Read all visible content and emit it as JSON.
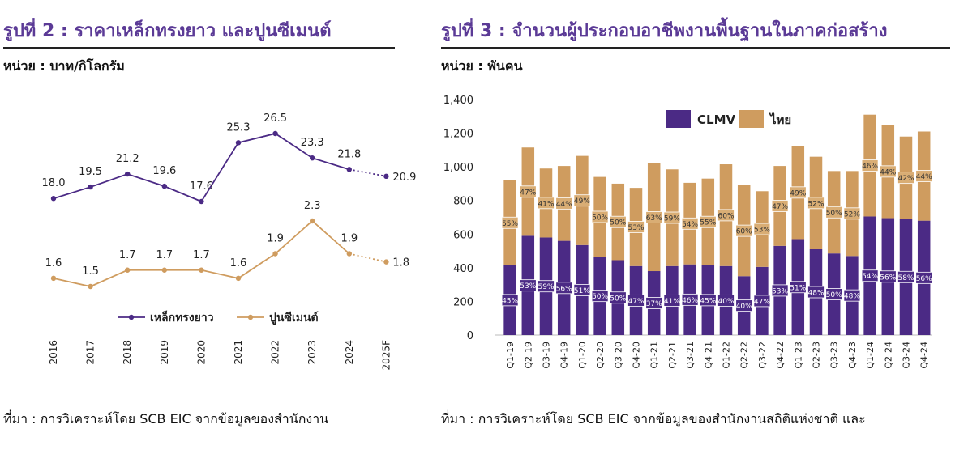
{
  "left": {
    "title": "รูปที่ 2 : ราคาเหล็กทรงยาว และปูนซีเมนต์",
    "unit": "หน่วย : บาท/กิโลกรัม",
    "source": "ที่มา : การวิเคราะห์โดย SCB EIC จากข้อมูลของสำนักงาน"
  },
  "right": {
    "title": "รูปที่ 3 : จำนวนผู้ประกอบอาชีพงานพื้นฐานในภาคก่อสร้าง",
    "unit": "หน่วย : พันคน",
    "source": "ที่มา : การวิเคราะห์โดย SCB EIC จากข้อมูลของสำนักงานสถิติแห่งชาติ และ"
  },
  "colors": {
    "title": "#5b3a96",
    "purple": "#4b2a85",
    "tan": "#cf9c5f",
    "tan_label": "#d9ad74"
  },
  "chart_data": [
    {
      "type": "line",
      "title": "",
      "xlabel": "",
      "ylabel": "",
      "categories": [
        "2016",
        "2017",
        "2018",
        "2019",
        "2020",
        "2021",
        "2022",
        "2023",
        "2024",
        "2025F"
      ],
      "value_labels": [
        [
          "18.0",
          "19.5",
          "21.2",
          "19.6",
          "17.6",
          "25.3",
          "26.5",
          "23.3",
          "21.8",
          "20.9"
        ],
        [
          "1.6",
          "1.5",
          "1.7",
          "1.7",
          "1.7",
          "1.6",
          "1.9",
          "2.3",
          "1.9",
          "1.8"
        ]
      ],
      "series": [
        {
          "name": "เหล็กทรงยาว",
          "color": "#4b2a85",
          "values": [
            18.0,
            19.5,
            21.2,
            19.6,
            17.6,
            25.3,
            26.5,
            23.3,
            21.8,
            20.9
          ],
          "forecast_from_index": 8
        },
        {
          "name": "ปูนซีเมนต์",
          "color": "#cf9c5f",
          "values": [
            1.6,
            1.5,
            1.7,
            1.7,
            1.7,
            1.6,
            1.9,
            2.3,
            1.9,
            1.8
          ],
          "forecast_from_index": 8
        }
      ],
      "legend": "bottom",
      "grid": false
    },
    {
      "type": "bar",
      "stacked": true,
      "title": "",
      "xlabel": "",
      "ylabel": "",
      "categories": [
        "Q1-19",
        "Q2-19",
        "Q3-19",
        "Q4-19",
        "Q1-20",
        "Q2-20",
        "Q3-20",
        "Q4-20",
        "Q1-21",
        "Q2-21",
        "Q3-21",
        "Q4-21",
        "Q1-22",
        "Q2-22",
        "Q3-22",
        "Q4-22",
        "Q1-23",
        "Q2-23",
        "Q3-23",
        "Q4-23",
        "Q1-24",
        "Q2-24",
        "Q3-24",
        "Q4-24"
      ],
      "ylim": [
        0,
        1400
      ],
      "yticks": [
        "0",
        "200",
        "400",
        "600",
        "800",
        "1,000",
        "1,200",
        "1,400"
      ],
      "series": [
        {
          "name": "CLMV",
          "color": "#4b2a85",
          "values": [
            415,
            590,
            580,
            560,
            535,
            465,
            445,
            410,
            380,
            410,
            420,
            415,
            410,
            350,
            405,
            530,
            570,
            510,
            485,
            470,
            705,
            695,
            690,
            680
          ],
          "labels": [
            "45%",
            "53%",
            "59%",
            "56%",
            "51%",
            "50%",
            "50%",
            "47%",
            "37%",
            "41%",
            "46%",
            "45%",
            "40%",
            "40%",
            "47%",
            "53%",
            "51%",
            "48%",
            "50%",
            "48%",
            "54%",
            "56%",
            "58%",
            "56%"
          ]
        },
        {
          "name": "ไทย",
          "color": "#cf9c5f",
          "values": [
            505,
            525,
            410,
            445,
            530,
            475,
            455,
            465,
            640,
            575,
            485,
            515,
            605,
            540,
            450,
            475,
            555,
            550,
            490,
            505,
            605,
            555,
            490,
            530
          ],
          "labels": [
            "55%",
            "47%",
            "41%",
            "44%",
            "49%",
            "50%",
            "50%",
            "53%",
            "63%",
            "59%",
            "54%",
            "55%",
            "60%",
            "60%",
            "53%",
            "47%",
            "49%",
            "52%",
            "50%",
            "52%",
            "46%",
            "44%",
            "42%",
            "44%"
          ]
        }
      ],
      "legend": "top",
      "grid": false
    }
  ]
}
